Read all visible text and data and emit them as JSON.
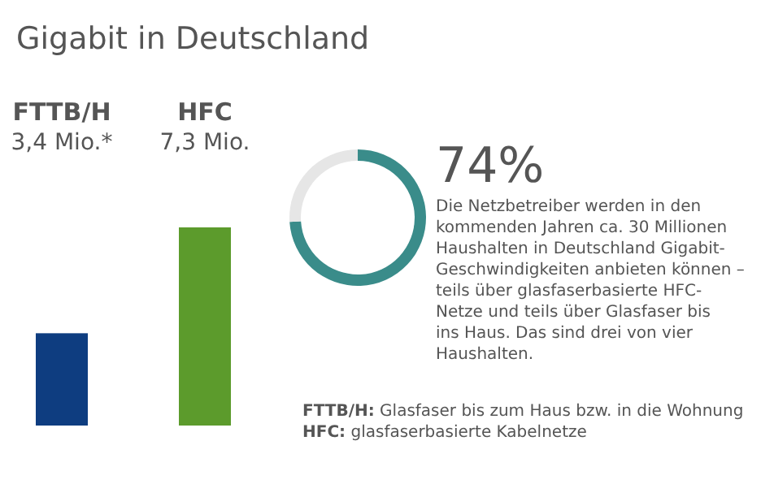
{
  "chart_data": [
    {
      "type": "bar",
      "title": "Gigabit in Deutschland",
      "categories": [
        "FTTB/H",
        "HFC"
      ],
      "values": [
        3.4,
        7.3
      ],
      "colors": [
        "#0e3d80",
        "#5c9b2c"
      ],
      "value_labels": [
        "3,4 Mio.*",
        "7,3 Mio."
      ]
    },
    {
      "type": "donut",
      "categories": [
        null,
        null
      ],
      "values": [
        74,
        26
      ],
      "colors": [
        "#3a8c8a",
        "#e6e6e6"
      ],
      "value_labels": [
        "74%",
        null
      ],
      "annotations": [
        "Die Netzbetreiber werden in den kommenden Jahren ca. 30 Millionen Haushalten in Deutschland Gigabit-Geschwindigkeiten anbieten können – teils über glasfaserbasierte HFC-Netze und teils über Glasfaser bis ins Haus. Das sind drei von vier Haushalten.",
        "FTTB/H: Glasfaser bis zum Haus bzw. in die Wohnung",
        "HFC: glasfaserbasierte Kabelnetze"
      ]
    }
  ]
}
